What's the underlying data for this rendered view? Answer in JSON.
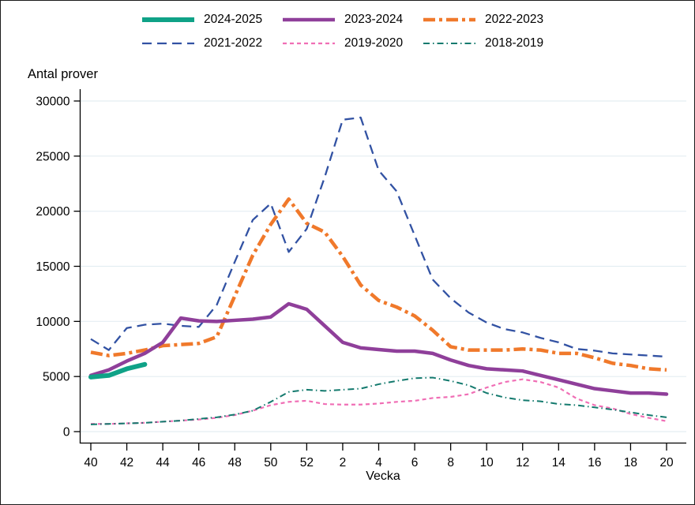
{
  "chart_data": {
    "type": "line",
    "ylabel": "Antal prover",
    "xlabel": "Vecka",
    "x_categories": [
      "40",
      "41",
      "42",
      "43",
      "44",
      "45",
      "46",
      "47",
      "48",
      "49",
      "50",
      "51",
      "52",
      "1",
      "2",
      "3",
      "4",
      "5",
      "6",
      "7",
      "8",
      "9",
      "10",
      "11",
      "12",
      "13",
      "14",
      "15",
      "16",
      "17",
      "18",
      "19",
      "20"
    ],
    "x_tick_every": 2,
    "y_ticks": [
      0,
      5000,
      10000,
      15000,
      20000,
      25000,
      30000
    ],
    "ylim": [
      0,
      30000
    ],
    "grid": "horizontal",
    "grid_color": "#e4eef2",
    "axis_color": "#000000",
    "legend_position": "top",
    "series": [
      {
        "name": "2024-2025",
        "color": "#0fa287",
        "width": 6,
        "dash": "",
        "values": [
          4950,
          5100,
          5700,
          6100
        ]
      },
      {
        "name": "2023-2024",
        "color": "#8f3f9a",
        "width": 4.5,
        "dash": "",
        "values": [
          5100,
          5600,
          6400,
          7100,
          8100,
          10300,
          10050,
          10000,
          10100,
          10200,
          10400,
          11600,
          11100,
          9600,
          8100,
          7600,
          7450,
          7300,
          7300,
          7100,
          6500,
          6000,
          5700,
          5600,
          5500,
          5100,
          4700,
          4300,
          3900,
          3700,
          3500,
          3500,
          3400
        ]
      },
      {
        "name": "2022-2023",
        "color": "#f0792b",
        "width": 4.5,
        "dash": "15 5 4 5",
        "values": [
          7200,
          6900,
          7100,
          7400,
          7800,
          7900,
          8000,
          8600,
          12300,
          16000,
          18800,
          21100,
          18900,
          18100,
          15900,
          13300,
          11900,
          11300,
          10500,
          9200,
          7700,
          7400,
          7400,
          7400,
          7500,
          7400,
          7100,
          7100,
          6700,
          6200,
          6000,
          5700,
          5600
        ]
      },
      {
        "name": "2021-2022",
        "color": "#3252a3",
        "width": 2.3,
        "dash": "12 7",
        "values": [
          8400,
          7400,
          9400,
          9700,
          9800,
          9600,
          9500,
          11500,
          15400,
          19200,
          20700,
          16300,
          18400,
          23100,
          28300,
          28500,
          23700,
          21800,
          17800,
          13800,
          12100,
          10800,
          9900,
          9300,
          9000,
          8500,
          8100,
          7500,
          7350,
          7100,
          7000,
          6900,
          6800
        ]
      },
      {
        "name": "2019-2020",
        "color": "#f06eb5",
        "width": 2.2,
        "dash": "5 4",
        "values": [
          700,
          700,
          750,
          800,
          900,
          1000,
          1100,
          1250,
          1500,
          1900,
          2400,
          2700,
          2800,
          2500,
          2450,
          2450,
          2550,
          2700,
          2800,
          3050,
          3150,
          3400,
          4000,
          4500,
          4750,
          4500,
          4000,
          3000,
          2400,
          2100,
          1600,
          1250,
          950
        ]
      },
      {
        "name": "2018-2019",
        "color": "#147a6e",
        "width": 2,
        "dash": "8 4 1.5 4",
        "values": [
          650,
          700,
          750,
          800,
          900,
          1000,
          1150,
          1300,
          1550,
          1900,
          2700,
          3600,
          3800,
          3700,
          3800,
          3900,
          4300,
          4600,
          4850,
          4900,
          4600,
          4200,
          3500,
          3100,
          2850,
          2750,
          2500,
          2400,
          2200,
          2000,
          1750,
          1500,
          1300
        ]
      }
    ]
  }
}
